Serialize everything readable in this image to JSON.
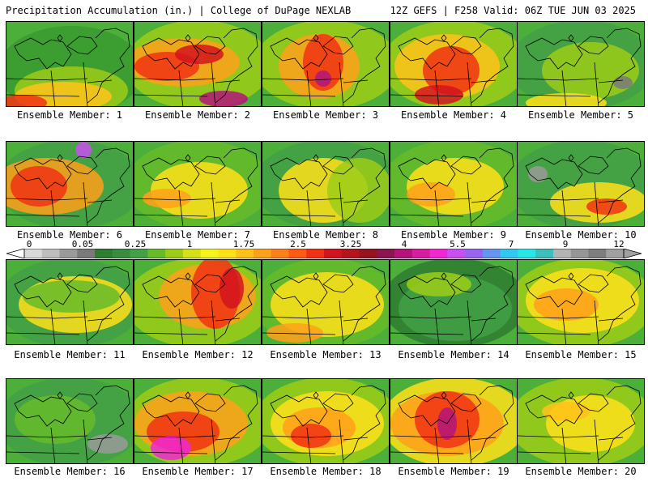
{
  "header": {
    "left": "Precipitation Accumulation (in.) | College of DuPage NEXLAB",
    "right": "12Z GEFS | F258 Valid: 06Z TUE JUN 03 2025"
  },
  "members": [
    {
      "label": "Ensemble Member: 1"
    },
    {
      "label": "Ensemble Member: 2"
    },
    {
      "label": "Ensemble Member: 3"
    },
    {
      "label": "Ensemble Member: 4"
    },
    {
      "label": "Ensemble Member: 5"
    },
    {
      "label": "Ensemble Member: 6"
    },
    {
      "label": "Ensemble Member: 7"
    },
    {
      "label": "Ensemble Member: 8"
    },
    {
      "label": "Ensemble Member: 9"
    },
    {
      "label": "Ensemble Member: 10"
    },
    {
      "label": "Ensemble Member: 11"
    },
    {
      "label": "Ensemble Member: 12"
    },
    {
      "label": "Ensemble Member: 13"
    },
    {
      "label": "Ensemble Member: 14"
    },
    {
      "label": "Ensemble Member: 15"
    },
    {
      "label": "Ensemble Member: 16"
    },
    {
      "label": "Ensemble Member: 17"
    },
    {
      "label": "Ensemble Member: 18"
    },
    {
      "label": "Ensemble Member: 19"
    },
    {
      "label": "Ensemble Member: 20"
    }
  ],
  "colorbar": {
    "ticks": [
      "0",
      "0.05",
      "0.25",
      "1",
      "1.75",
      "2.5",
      "3.25",
      "4",
      "5.5",
      "7",
      "9",
      "12"
    ],
    "colors": [
      "#d9d9d9",
      "#bdbdbd",
      "#9a9a9a",
      "#7a7a7a",
      "#2e7d32",
      "#388e3c",
      "#43a047",
      "#66bb2a",
      "#9ccc18",
      "#d4e117",
      "#f4f41a",
      "#ffe11a",
      "#ffc21a",
      "#ffa01a",
      "#ff7f1a",
      "#ff5a14",
      "#f03214",
      "#d2141e",
      "#b4141e",
      "#96141e",
      "#8c1450",
      "#b4147a",
      "#d71ea0",
      "#f028d2",
      "#c850f0",
      "#9664f0",
      "#6496f0",
      "#32c8f0",
      "#28e6e6",
      "#3cbebe",
      "#b4b4b4",
      "#969696",
      "#7d7d7d",
      "#a0a0a0"
    ]
  }
}
